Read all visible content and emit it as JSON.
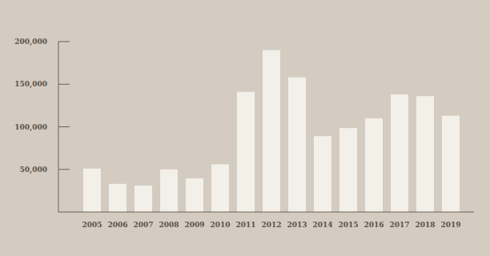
{
  "chart_data": {
    "type": "bar",
    "categories": [
      "2005",
      "2006",
      "2007",
      "2008",
      "2009",
      "2010",
      "2011",
      "2012",
      "2013",
      "2014",
      "2015",
      "2016",
      "2017",
      "2018",
      "2019"
    ],
    "values": [
      51000,
      33000,
      31000,
      50000,
      39500,
      56000,
      141000,
      190000,
      158000,
      89000,
      98500,
      110000,
      138000,
      136000,
      113000
    ],
    "color": "#f3efe9",
    "ylim": [
      0,
      200000
    ],
    "yticks": [
      {
        "value": 50000,
        "label": "50,000"
      },
      {
        "value": 100000,
        "label": "100,000"
      },
      {
        "value": 150000,
        "label": "150,000"
      },
      {
        "value": 200000,
        "label": "200,000"
      }
    ],
    "grid": false
  }
}
